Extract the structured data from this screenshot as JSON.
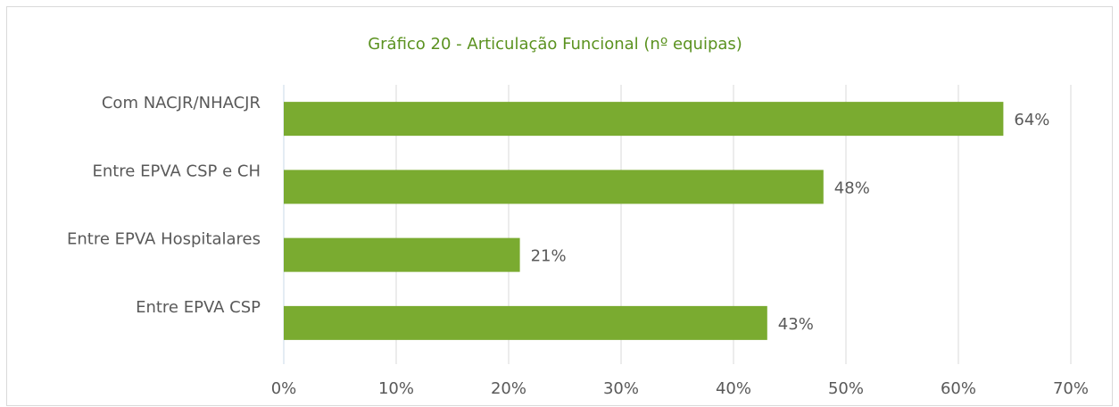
{
  "chart_data": {
    "type": "bar",
    "orientation": "horizontal",
    "title": "Gráfico 20 - Articulação Funcional (nº equipas)",
    "categories": [
      "Com NACJR/NHACJR",
      "Entre EPVA CSP e CH",
      "Entre EPVA Hospitalares",
      "Entre EPVA CSP"
    ],
    "values": [
      64,
      48,
      21,
      43
    ],
    "value_labels": [
      "64%",
      "48%",
      "21%",
      "43%"
    ],
    "color": "#7aab30",
    "xlim": [
      0,
      70
    ],
    "xticks": [
      {
        "value": 0,
        "label": "0%"
      },
      {
        "value": 10,
        "label": "10%"
      },
      {
        "value": 20,
        "label": "20%"
      },
      {
        "value": 30,
        "label": "30%"
      },
      {
        "value": 40,
        "label": "40%"
      },
      {
        "value": 50,
        "label": "50%"
      },
      {
        "value": 60,
        "label": "60%"
      },
      {
        "value": 70,
        "label": "70%"
      }
    ],
    "grid": true
  }
}
